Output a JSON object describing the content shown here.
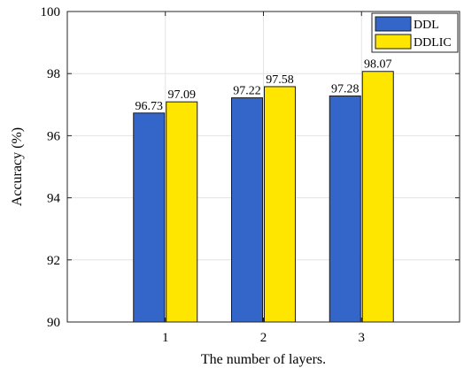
{
  "chart_data": {
    "type": "bar",
    "categories": [
      "1",
      "2",
      "3"
    ],
    "series": [
      {
        "name": "DDL",
        "values": [
          96.73,
          97.22,
          97.28
        ],
        "color": "#3366c8"
      },
      {
        "name": "DDLIC",
        "values": [
          97.09,
          97.58,
          98.07
        ],
        "color": "#ffe600"
      }
    ],
    "data_labels": [
      [
        "96.73",
        "97.22",
        "97.28"
      ],
      [
        "97.09",
        "97.58",
        "98.07"
      ]
    ],
    "xlabel": "The number of layers.",
    "ylabel": "Accuracy (%)",
    "ylim": [
      90,
      100
    ],
    "yticks": [
      90,
      92,
      94,
      96,
      98,
      100
    ],
    "ytick_labels": [
      "90",
      "92",
      "94",
      "96",
      "98",
      "100"
    ],
    "grid": true,
    "legend_position": "top-right"
  }
}
